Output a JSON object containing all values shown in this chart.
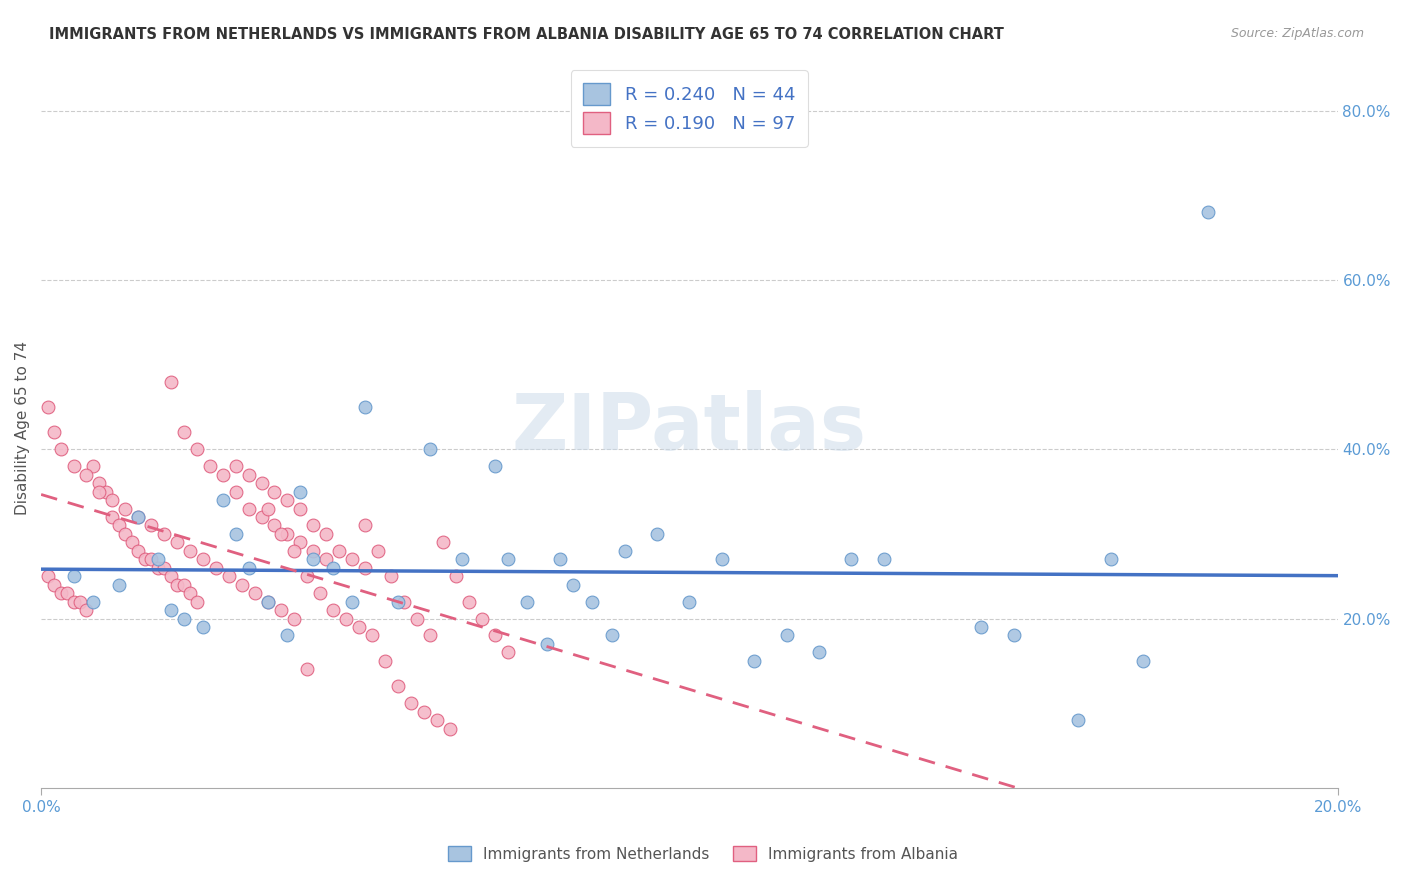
{
  "title": "IMMIGRANTS FROM NETHERLANDS VS IMMIGRANTS FROM ALBANIA DISABILITY AGE 65 TO 74 CORRELATION CHART",
  "source": "Source: ZipAtlas.com",
  "ylabel": "Disability Age 65 to 74",
  "ylabel_right_ticks": [
    "20.0%",
    "40.0%",
    "60.0%",
    "80.0%"
  ],
  "ylabel_right_vals": [
    0.2,
    0.4,
    0.6,
    0.8
  ],
  "watermark": "ZIPatlas",
  "netherlands_color": "#a8c4e0",
  "netherlands_edge": "#6699cc",
  "albania_color": "#f4b8c8",
  "albania_edge": "#e06080",
  "netherlands_line_color": "#4472C4",
  "albania_line_color": "#e06080",
  "netherlands_R": 0.24,
  "netherlands_N": 44,
  "albania_R": 0.19,
  "albania_N": 97,
  "xlim": [
    0.0,
    0.2
  ],
  "ylim": [
    0.0,
    0.85
  ],
  "netherlands_scatter_x": [
    0.005,
    0.008,
    0.012,
    0.015,
    0.018,
    0.02,
    0.022,
    0.025,
    0.028,
    0.03,
    0.032,
    0.035,
    0.038,
    0.04,
    0.042,
    0.045,
    0.048,
    0.05,
    0.055,
    0.06,
    0.065,
    0.07,
    0.072,
    0.075,
    0.078,
    0.08,
    0.082,
    0.085,
    0.088,
    0.09,
    0.095,
    0.1,
    0.105,
    0.11,
    0.115,
    0.12,
    0.125,
    0.13,
    0.145,
    0.15,
    0.16,
    0.165,
    0.17,
    0.18
  ],
  "netherlands_scatter_y": [
    0.25,
    0.22,
    0.24,
    0.32,
    0.27,
    0.21,
    0.2,
    0.19,
    0.34,
    0.3,
    0.26,
    0.22,
    0.18,
    0.35,
    0.27,
    0.26,
    0.22,
    0.45,
    0.22,
    0.4,
    0.27,
    0.38,
    0.27,
    0.22,
    0.17,
    0.27,
    0.24,
    0.22,
    0.18,
    0.28,
    0.3,
    0.22,
    0.27,
    0.15,
    0.18,
    0.16,
    0.27,
    0.27,
    0.19,
    0.18,
    0.08,
    0.27,
    0.15,
    0.68
  ],
  "albania_scatter_x": [
    0.001,
    0.002,
    0.003,
    0.004,
    0.005,
    0.006,
    0.007,
    0.008,
    0.009,
    0.01,
    0.011,
    0.012,
    0.013,
    0.014,
    0.015,
    0.016,
    0.017,
    0.018,
    0.019,
    0.02,
    0.021,
    0.022,
    0.023,
    0.024,
    0.001,
    0.002,
    0.003,
    0.005,
    0.007,
    0.009,
    0.011,
    0.013,
    0.015,
    0.017,
    0.019,
    0.021,
    0.023,
    0.025,
    0.027,
    0.029,
    0.031,
    0.033,
    0.035,
    0.037,
    0.039,
    0.041,
    0.02,
    0.022,
    0.024,
    0.026,
    0.028,
    0.03,
    0.032,
    0.034,
    0.036,
    0.038,
    0.04,
    0.042,
    0.044,
    0.03,
    0.032,
    0.034,
    0.036,
    0.038,
    0.04,
    0.042,
    0.044,
    0.046,
    0.048,
    0.05,
    0.035,
    0.037,
    0.039,
    0.041,
    0.043,
    0.045,
    0.047,
    0.049,
    0.051,
    0.053,
    0.055,
    0.057,
    0.059,
    0.061,
    0.063,
    0.05,
    0.052,
    0.054,
    0.056,
    0.058,
    0.06,
    0.062,
    0.064,
    0.066,
    0.068,
    0.07,
    0.072
  ],
  "albania_scatter_y": [
    0.25,
    0.24,
    0.23,
    0.23,
    0.22,
    0.22,
    0.21,
    0.38,
    0.36,
    0.35,
    0.32,
    0.31,
    0.3,
    0.29,
    0.28,
    0.27,
    0.27,
    0.26,
    0.26,
    0.25,
    0.24,
    0.24,
    0.23,
    0.22,
    0.45,
    0.42,
    0.4,
    0.38,
    0.37,
    0.35,
    0.34,
    0.33,
    0.32,
    0.31,
    0.3,
    0.29,
    0.28,
    0.27,
    0.26,
    0.25,
    0.24,
    0.23,
    0.22,
    0.21,
    0.2,
    0.14,
    0.48,
    0.42,
    0.4,
    0.38,
    0.37,
    0.35,
    0.33,
    0.32,
    0.31,
    0.3,
    0.29,
    0.28,
    0.27,
    0.38,
    0.37,
    0.36,
    0.35,
    0.34,
    0.33,
    0.31,
    0.3,
    0.28,
    0.27,
    0.26,
    0.33,
    0.3,
    0.28,
    0.25,
    0.23,
    0.21,
    0.2,
    0.19,
    0.18,
    0.15,
    0.12,
    0.1,
    0.09,
    0.08,
    0.07,
    0.31,
    0.28,
    0.25,
    0.22,
    0.2,
    0.18,
    0.29,
    0.25,
    0.22,
    0.2,
    0.18,
    0.16
  ]
}
